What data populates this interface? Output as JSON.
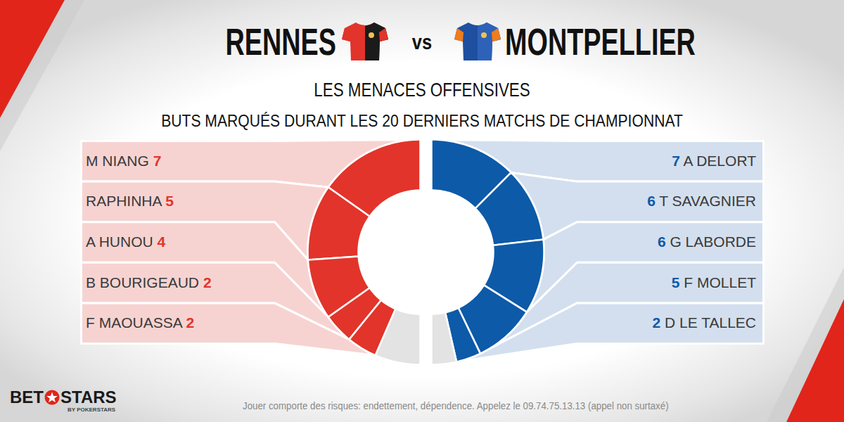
{
  "chart_data": [
    {
      "type": "pie",
      "title": "RENNES",
      "categories": [
        "M NIANG",
        "RAPHINHA",
        "A HUNOU",
        "B BOURIGEAUD",
        "F MAOUASSA",
        null
      ],
      "values": [
        7,
        5,
        4,
        2,
        2,
        3
      ],
      "colors": [
        "#e2342a",
        "#e2342a",
        "#e2342a",
        "#e2342a",
        "#e2342a",
        "#e3e3e3"
      ],
      "data_labels": true
    },
    {
      "type": "pie",
      "title": "MONTPELLIER",
      "categories": [
        "A DELORT",
        "T SAVAGNIER",
        "G LABORDE",
        "F MOLLET",
        "D LE TALLEC",
        null
      ],
      "values": [
        7,
        6,
        6,
        5,
        2,
        2
      ],
      "colors": [
        "#0d5aa8",
        "#0d5aa8",
        "#0d5aa8",
        "#0d5aa8",
        "#0d5aa8",
        "#e3e3e3"
      ],
      "data_labels": true
    }
  ],
  "header": {
    "separator": "vs",
    "title": "LES MENACES OFFENSIVES",
    "subtitle": "BUTS MARQUÉS DURANT LES 20 DERNIERS MATCHS DE CHAMPIONNAT"
  },
  "footer": "Jouer comporte des risques: endettement, dépendence. Appelez le 09.74.75.13.13 (appel non surtaxé)",
  "logo": {
    "brand_left": "BET",
    "brand_right": "STARS",
    "tagline": "BY POKERSTARS"
  }
}
